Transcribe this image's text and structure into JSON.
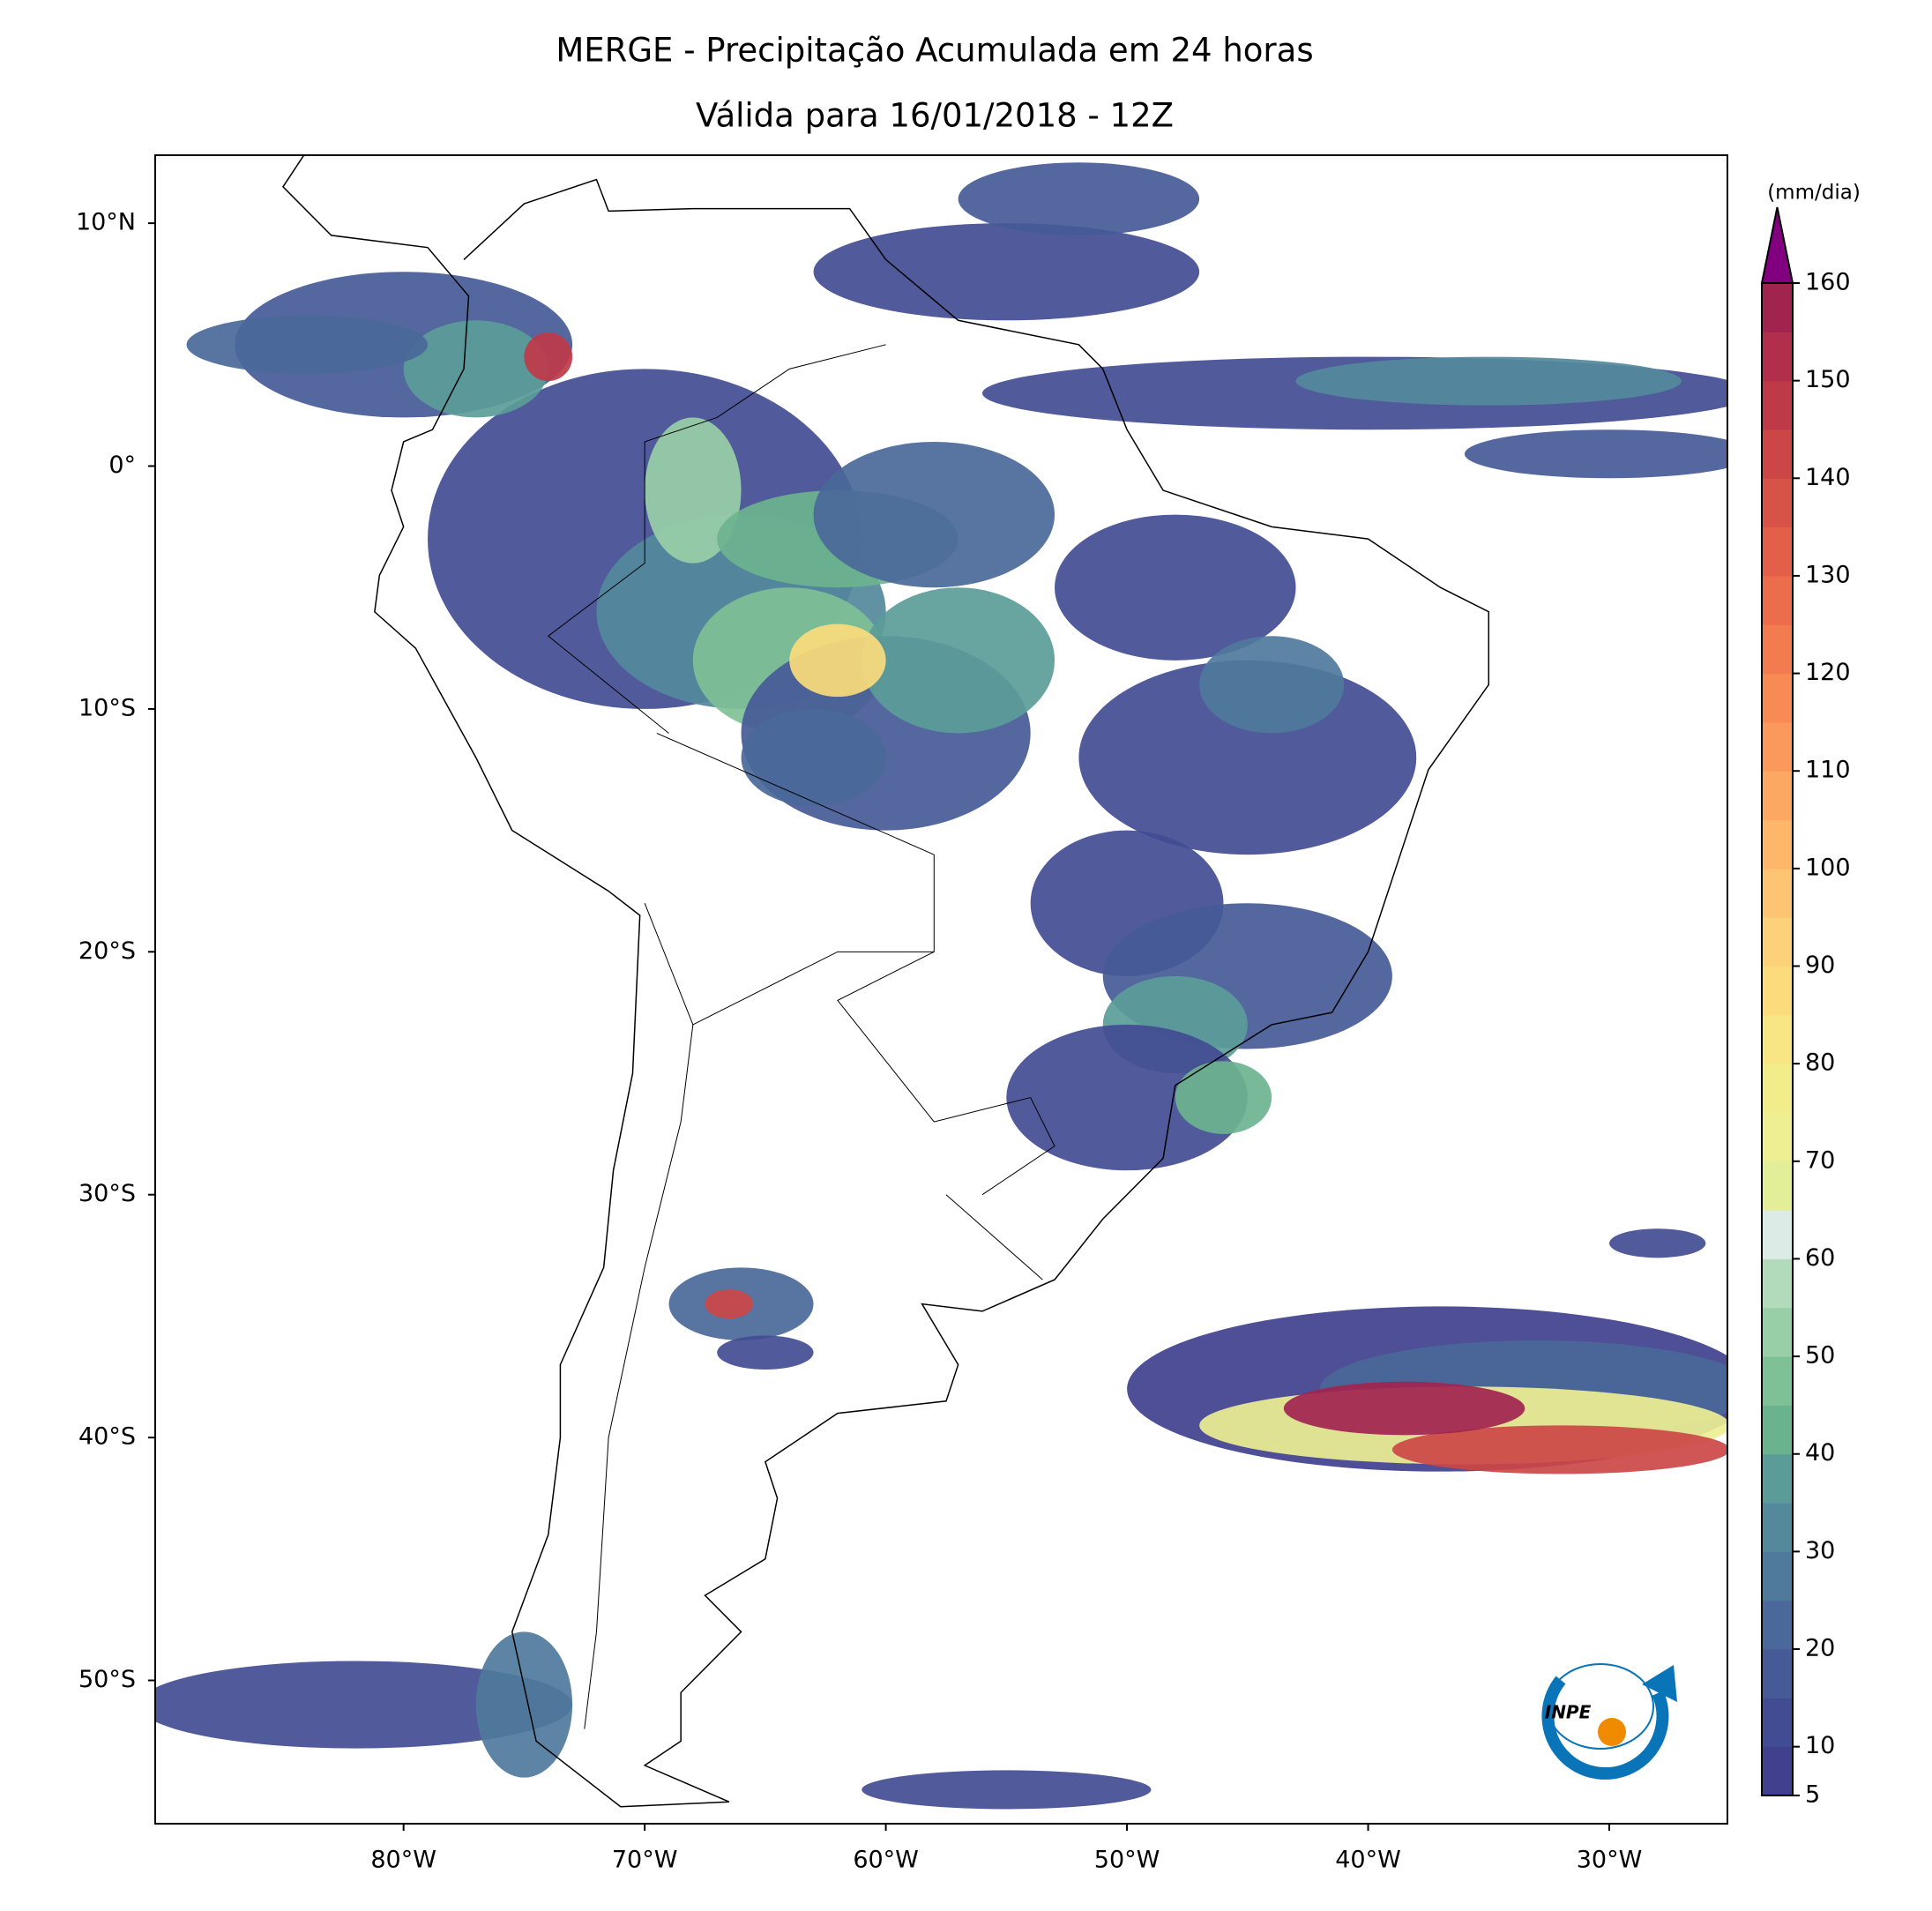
{
  "chart_data": {
    "type": "contourf",
    "title": "MERGE - Precipitação Acumulada em 24 horas",
    "subtitle": "Válida para 16/01/2018 - 12Z",
    "xlim": [
      -90.3,
      -25.1
    ],
    "ylim": [
      -55.9,
      12.8
    ],
    "xticks": [
      {
        "value": -80,
        "label": "80°W"
      },
      {
        "value": -70,
        "label": "70°W"
      },
      {
        "value": -60,
        "label": "60°W"
      },
      {
        "value": -50,
        "label": "50°W"
      },
      {
        "value": -40,
        "label": "40°W"
      },
      {
        "value": -30,
        "label": "30°W"
      }
    ],
    "yticks": [
      {
        "value": 10,
        "label": "10°N"
      },
      {
        "value": 0,
        "label": "0°"
      },
      {
        "value": -10,
        "label": "10°S"
      },
      {
        "value": -20,
        "label": "20°S"
      },
      {
        "value": -30,
        "label": "30°S"
      },
      {
        "value": -40,
        "label": "40°S"
      },
      {
        "value": -50,
        "label": "50°S"
      }
    ],
    "colorbar": {
      "label": "(mm/dia)",
      "levels": [
        5,
        10,
        15,
        20,
        25,
        30,
        35,
        40,
        45,
        50,
        55,
        60,
        65,
        70,
        75,
        80,
        85,
        90,
        95,
        100,
        105,
        110,
        115,
        120,
        125,
        130,
        135,
        140,
        145,
        150,
        155,
        160
      ],
      "colors": [
        "#40408e",
        "#424c93",
        "#455a97",
        "#4a6899",
        "#4f7a9c",
        "#54899c",
        "#5b9c98",
        "#6bb38f",
        "#7fc196",
        "#99cfa7",
        "#b2dbbb",
        "#dcebe6",
        "#e3ee98",
        "#edef92",
        "#f3ec8b",
        "#f8e584",
        "#fbdb7c",
        "#fdd17a",
        "#fdc473",
        "#fdb66a",
        "#fca862",
        "#fa995b",
        "#f78a55",
        "#f27c4f",
        "#eb6d4b",
        "#e35f49",
        "#d85347",
        "#cc4647",
        "#bf3a48",
        "#b12f4b",
        "#a1244f"
      ],
      "extend_color": "#800080",
      "ticks": [
        5,
        10,
        20,
        30,
        40,
        50,
        60,
        70,
        80,
        90,
        100,
        110,
        120,
        130,
        140,
        150,
        160
      ]
    },
    "logo_text": "INPE"
  }
}
